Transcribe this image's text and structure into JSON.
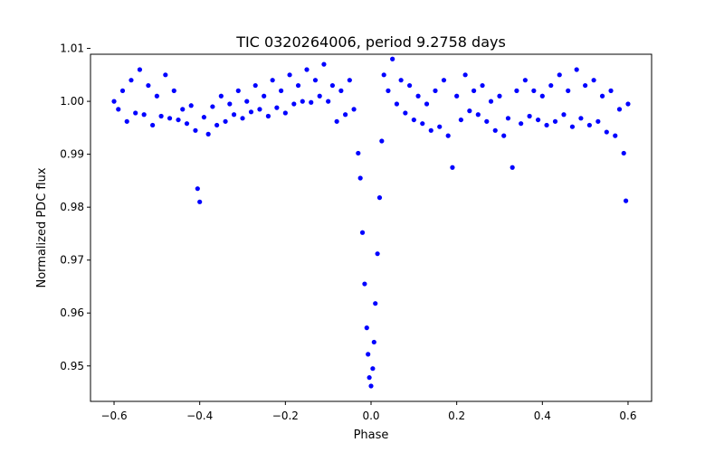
{
  "chart_data": {
    "type": "scatter",
    "title": "TIC 0320264006, period 9.2758 days",
    "xlabel": "Phase",
    "ylabel": "Normalized PDC flux",
    "xlim": [
      -0.655,
      0.655
    ],
    "ylim": [
      0.9433,
      1.0089
    ],
    "xticks": [
      -0.6,
      -0.4,
      -0.2,
      0.0,
      0.2,
      0.4,
      0.6
    ],
    "xtick_labels": [
      "−0.6",
      "−0.4",
      "−0.2",
      "0.0",
      "0.2",
      "0.4",
      "0.6"
    ],
    "yticks": [
      0.95,
      0.96,
      0.97,
      0.98,
      0.99,
      1.0,
      1.01
    ],
    "ytick_labels": [
      "0.95",
      "0.96",
      "0.97",
      "0.98",
      "0.99",
      "1.00",
      "1.01"
    ],
    "grid": false,
    "marker_color": "#0000ff",
    "series": [
      {
        "points": [
          [
            -0.6,
            1.0
          ],
          [
            -0.59,
            0.9985
          ],
          [
            -0.58,
            1.002
          ],
          [
            -0.57,
            0.9962
          ],
          [
            -0.56,
            1.004
          ],
          [
            -0.55,
            0.9978
          ],
          [
            -0.54,
            1.006
          ],
          [
            -0.53,
            0.9975
          ],
          [
            -0.52,
            1.003
          ],
          [
            -0.51,
            0.9955
          ],
          [
            -0.5,
            1.001
          ],
          [
            -0.49,
            0.9972
          ],
          [
            -0.48,
            1.005
          ],
          [
            -0.47,
            0.9968
          ],
          [
            -0.46,
            1.002
          ],
          [
            -0.45,
            0.9965
          ],
          [
            -0.44,
            0.9985
          ],
          [
            -0.43,
            0.9958
          ],
          [
            -0.42,
            0.9992
          ],
          [
            -0.41,
            0.9945
          ],
          [
            -0.405,
            0.9835
          ],
          [
            -0.4,
            0.981
          ],
          [
            -0.39,
            0.997
          ],
          [
            -0.38,
            0.9938
          ],
          [
            -0.37,
            0.999
          ],
          [
            -0.36,
            0.9955
          ],
          [
            -0.35,
            1.001
          ],
          [
            -0.34,
            0.9962
          ],
          [
            -0.33,
            0.9995
          ],
          [
            -0.32,
            0.9975
          ],
          [
            -0.31,
            1.002
          ],
          [
            -0.3,
            0.9968
          ],
          [
            -0.29,
            1.0
          ],
          [
            -0.28,
            0.998
          ],
          [
            -0.27,
            1.003
          ],
          [
            -0.26,
            0.9985
          ],
          [
            -0.25,
            1.001
          ],
          [
            -0.24,
            0.9972
          ],
          [
            -0.23,
            1.004
          ],
          [
            -0.22,
            0.9988
          ],
          [
            -0.21,
            1.002
          ],
          [
            -0.2,
            0.9978
          ],
          [
            -0.19,
            1.005
          ],
          [
            -0.18,
            0.9995
          ],
          [
            -0.17,
            1.003
          ],
          [
            -0.16,
            1.0
          ],
          [
            -0.15,
            1.006
          ],
          [
            -0.14,
            0.9998
          ],
          [
            -0.13,
            1.004
          ],
          [
            -0.12,
            1.001
          ],
          [
            -0.11,
            1.007
          ],
          [
            -0.1,
            1.0
          ],
          [
            -0.09,
            1.003
          ],
          [
            -0.08,
            0.9962
          ],
          [
            -0.07,
            1.002
          ],
          [
            -0.06,
            0.9975
          ],
          [
            -0.05,
            1.004
          ],
          [
            -0.04,
            0.9985
          ],
          [
            -0.03,
            0.9902
          ],
          [
            -0.025,
            0.9855
          ],
          [
            -0.02,
            0.9752
          ],
          [
            -0.015,
            0.9655
          ],
          [
            -0.01,
            0.9572
          ],
          [
            -0.007,
            0.9522
          ],
          [
            -0.004,
            0.9478
          ],
          [
            0.0,
            0.9462
          ],
          [
            0.004,
            0.9495
          ],
          [
            0.007,
            0.9545
          ],
          [
            0.01,
            0.9618
          ],
          [
            0.015,
            0.9712
          ],
          [
            0.02,
            0.9818
          ],
          [
            0.025,
            0.9925
          ],
          [
            0.03,
            1.005
          ],
          [
            0.04,
            1.002
          ],
          [
            0.05,
            1.008
          ],
          [
            0.06,
            0.9995
          ],
          [
            0.07,
            1.004
          ],
          [
            0.08,
            0.9978
          ],
          [
            0.09,
            1.003
          ],
          [
            0.1,
            0.9965
          ],
          [
            0.11,
            1.001
          ],
          [
            0.12,
            0.9958
          ],
          [
            0.13,
            0.9995
          ],
          [
            0.14,
            0.9945
          ],
          [
            0.15,
            1.002
          ],
          [
            0.16,
            0.9952
          ],
          [
            0.17,
            1.004
          ],
          [
            0.18,
            0.9935
          ],
          [
            0.19,
            0.9875
          ],
          [
            0.2,
            1.001
          ],
          [
            0.21,
            0.9965
          ],
          [
            0.22,
            1.005
          ],
          [
            0.23,
            0.9982
          ],
          [
            0.24,
            1.002
          ],
          [
            0.25,
            0.9975
          ],
          [
            0.26,
            1.003
          ],
          [
            0.27,
            0.9962
          ],
          [
            0.28,
            1.0
          ],
          [
            0.29,
            0.9945
          ],
          [
            0.3,
            1.001
          ],
          [
            0.31,
            0.9935
          ],
          [
            0.32,
            0.9968
          ],
          [
            0.33,
            0.9875
          ],
          [
            0.34,
            1.002
          ],
          [
            0.35,
            0.9958
          ],
          [
            0.36,
            1.004
          ],
          [
            0.37,
            0.9972
          ],
          [
            0.38,
            1.002
          ],
          [
            0.39,
            0.9965
          ],
          [
            0.4,
            1.001
          ],
          [
            0.41,
            0.9955
          ],
          [
            0.42,
            1.003
          ],
          [
            0.43,
            0.9962
          ],
          [
            0.44,
            1.005
          ],
          [
            0.45,
            0.9975
          ],
          [
            0.46,
            1.002
          ],
          [
            0.47,
            0.9952
          ],
          [
            0.48,
            1.006
          ],
          [
            0.49,
            0.9968
          ],
          [
            0.5,
            1.003
          ],
          [
            0.51,
            0.9955
          ],
          [
            0.52,
            1.004
          ],
          [
            0.53,
            0.9962
          ],
          [
            0.54,
            1.001
          ],
          [
            0.55,
            0.9942
          ],
          [
            0.56,
            1.002
          ],
          [
            0.57,
            0.9935
          ],
          [
            0.58,
            0.9985
          ],
          [
            0.59,
            0.9902
          ],
          [
            0.595,
            0.9812
          ],
          [
            0.6,
            0.9995
          ]
        ]
      }
    ]
  }
}
